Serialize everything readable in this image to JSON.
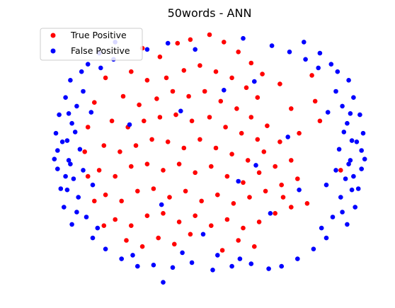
{
  "chart_data": {
    "type": "scatter",
    "title": "50words - ANN",
    "xlabel": "",
    "ylabel": "",
    "axes_visible": false,
    "grid": false,
    "xlim": [
      -10,
      10
    ],
    "ylim": [
      -10,
      10
    ],
    "legend_position": "top-left",
    "series": [
      {
        "name": "True Positive",
        "color": "#ff0000",
        "points": [
          [
            -4.2,
            8.5
          ],
          [
            -3.1,
            7.8
          ],
          [
            -2.0,
            8.9
          ],
          [
            -1.2,
            9.2
          ],
          [
            0.0,
            9.6
          ],
          [
            0.9,
            9.0
          ],
          [
            1.8,
            8.2
          ],
          [
            2.6,
            7.3
          ],
          [
            3.3,
            6.4
          ],
          [
            -4.9,
            6.6
          ],
          [
            -3.9,
            5.9
          ],
          [
            -2.7,
            6.1
          ],
          [
            -1.6,
            6.7
          ],
          [
            -0.6,
            7.1
          ],
          [
            0.4,
            6.6
          ],
          [
            1.4,
            6.1
          ],
          [
            2.3,
            5.3
          ],
          [
            3.0,
            4.5
          ],
          [
            -5.4,
            4.6
          ],
          [
            -4.4,
            3.9
          ],
          [
            -3.3,
            4.4
          ],
          [
            -2.3,
            5.0
          ],
          [
            -1.3,
            4.6
          ],
          [
            -0.3,
            5.0
          ],
          [
            0.7,
            4.2
          ],
          [
            1.7,
            3.6
          ],
          [
            2.6,
            2.9
          ],
          [
            3.6,
            2.2
          ],
          [
            -6.1,
            2.6
          ],
          [
            -5.1,
            2.1
          ],
          [
            -4.1,
            2.6
          ],
          [
            -3.1,
            2.9
          ],
          [
            -2.1,
            3.1
          ],
          [
            -1.1,
            2.6
          ],
          [
            0.0,
            2.9
          ],
          [
            1.0,
            2.1
          ],
          [
            2.0,
            1.6
          ],
          [
            3.0,
            1.1
          ],
          [
            -6.6,
            0.6
          ],
          [
            -5.6,
            0.1
          ],
          [
            -4.6,
            0.6
          ],
          [
            -3.6,
            1.1
          ],
          [
            -2.6,
            0.9
          ],
          [
            -1.6,
            0.4
          ],
          [
            -0.6,
            1.1
          ],
          [
            0.4,
            0.4
          ],
          [
            1.4,
            -0.1
          ],
          [
            2.4,
            -0.6
          ],
          [
            3.4,
            0.1
          ],
          [
            4.4,
            0.9
          ],
          [
            -6.9,
            -1.4
          ],
          [
            -5.9,
            -1.9
          ],
          [
            -4.9,
            -1.1
          ],
          [
            -3.9,
            -0.9
          ],
          [
            -2.9,
            -1.4
          ],
          [
            -1.9,
            -0.9
          ],
          [
            -0.9,
            -1.6
          ],
          [
            0.1,
            -1.1
          ],
          [
            1.1,
            -1.9
          ],
          [
            2.1,
            -2.4
          ],
          [
            3.1,
            -1.6
          ],
          [
            4.1,
            -1.1
          ],
          [
            5.1,
            -0.6
          ],
          [
            -6.5,
            -3.4
          ],
          [
            -5.5,
            -3.9
          ],
          [
            -4.5,
            -3.1
          ],
          [
            -3.5,
            -2.9
          ],
          [
            -2.5,
            -3.6
          ],
          [
            -1.5,
            -3.1
          ],
          [
            -0.5,
            -3.9
          ],
          [
            0.5,
            -3.4
          ],
          [
            1.5,
            -4.1
          ],
          [
            2.5,
            -3.6
          ],
          [
            3.5,
            -3.1
          ],
          [
            4.5,
            -2.6
          ],
          [
            5.5,
            -2.1
          ],
          [
            -5.9,
            -5.4
          ],
          [
            -4.9,
            -5.9
          ],
          [
            -3.9,
            -5.1
          ],
          [
            -2.9,
            -4.9
          ],
          [
            -1.9,
            -5.6
          ],
          [
            -0.9,
            -5.1
          ],
          [
            0.1,
            -5.9
          ],
          [
            1.1,
            -5.4
          ],
          [
            2.1,
            -6.1
          ],
          [
            3.1,
            -5.6
          ],
          [
            4.1,
            -4.9
          ],
          [
            5.1,
            -4.4
          ],
          [
            6.1,
            -4.1
          ],
          [
            -5.2,
            -7.1
          ],
          [
            -4.2,
            -7.6
          ],
          [
            -3.2,
            -6.9
          ],
          [
            -2.2,
            -7.4
          ],
          [
            -1.2,
            -6.6
          ],
          [
            0.8,
            -7.9
          ],
          [
            1.8,
            -7.1
          ],
          [
            2.8,
            -7.6
          ],
          [
            -6.6,
            -5.9
          ],
          [
            -7.2,
            -3.9
          ],
          [
            -7.6,
            -1.9
          ],
          [
            -7.8,
            0.1
          ],
          [
            -7.6,
            2.1
          ],
          [
            -7.2,
            4.1
          ],
          [
            -6.5,
            6.1
          ],
          [
            6.6,
            4.2
          ],
          [
            6.9,
            2.6
          ],
          [
            6.4,
            6.3
          ],
          [
            8.2,
            -1.4
          ],
          [
            4.4,
            5.6
          ],
          [
            5.1,
            3.6
          ],
          [
            5.6,
            1.6
          ],
          [
            4.6,
            -3.6
          ]
        ]
      },
      {
        "name": "False Positive",
        "color": "#0000ff",
        "points": [
          [
            -9.5,
            0.2
          ],
          [
            -9.6,
            1.6
          ],
          [
            -9.4,
            3.1
          ],
          [
            -9.5,
            -1.3
          ],
          [
            -9.3,
            -2.9
          ],
          [
            -9.0,
            4.5
          ],
          [
            -9.1,
            -4.4
          ],
          [
            -8.7,
            5.9
          ],
          [
            -8.6,
            -5.8
          ],
          [
            -8.9,
            1.0
          ],
          [
            -8.8,
            -0.6
          ],
          [
            -8.6,
            2.4
          ],
          [
            -8.5,
            -2.1
          ],
          [
            -8.3,
            3.8
          ],
          [
            -8.2,
            -3.6
          ],
          [
            -8.1,
            0.3
          ],
          [
            -7.9,
            -1.4
          ],
          [
            -8.4,
            1.7
          ],
          [
            -7.9,
            5.0
          ],
          [
            -7.7,
            -5.2
          ],
          [
            -8.8,
            3.2
          ],
          [
            -8.9,
            -3.0
          ],
          [
            -7.6,
            7.2
          ],
          [
            -6.9,
            8.1
          ],
          [
            -5.9,
            9.0
          ],
          [
            -7.3,
            -6.9
          ],
          [
            -6.5,
            -7.8
          ],
          [
            -5.5,
            -8.6
          ],
          [
            -4.5,
            -9.2
          ],
          [
            -8.0,
            6.6
          ],
          [
            -7.0,
            -6.1
          ],
          [
            -6.8,
            6.9
          ],
          [
            -6.0,
            7.6
          ],
          [
            -8.3,
            -4.8
          ],
          [
            -7.4,
            3.3
          ],
          [
            -7.3,
            -2.6
          ],
          [
            -9.7,
            -0.5
          ],
          [
            -9.2,
            0.9
          ],
          [
            -9.0,
            -1.9
          ],
          [
            -8.7,
            -0.9
          ],
          [
            9.5,
            0.2
          ],
          [
            9.6,
            1.6
          ],
          [
            9.4,
            3.1
          ],
          [
            9.5,
            -1.3
          ],
          [
            9.3,
            -2.9
          ],
          [
            9.0,
            4.5
          ],
          [
            9.1,
            -4.4
          ],
          [
            8.7,
            5.9
          ],
          [
            8.6,
            -5.8
          ],
          [
            8.9,
            1.0
          ],
          [
            8.8,
            -0.6
          ],
          [
            8.6,
            2.4
          ],
          [
            8.5,
            -2.1
          ],
          [
            8.3,
            3.8
          ],
          [
            8.2,
            -3.6
          ],
          [
            8.1,
            0.3
          ],
          [
            7.9,
            -1.4
          ],
          [
            8.4,
            1.7
          ],
          [
            7.9,
            5.0
          ],
          [
            7.7,
            -5.2
          ],
          [
            8.8,
            3.2
          ],
          [
            8.9,
            -3.0
          ],
          [
            7.6,
            7.2
          ],
          [
            6.9,
            8.1
          ],
          [
            5.9,
            9.0
          ],
          [
            7.3,
            -6.9
          ],
          [
            6.5,
            -7.8
          ],
          [
            5.5,
            -8.6
          ],
          [
            4.5,
            -9.2
          ],
          [
            8.0,
            6.6
          ],
          [
            7.0,
            -6.1
          ],
          [
            6.8,
            6.9
          ],
          [
            6.0,
            7.6
          ],
          [
            8.3,
            -4.8
          ],
          [
            7.4,
            3.3
          ],
          [
            7.3,
            -2.6
          ],
          [
            9.7,
            -0.5
          ],
          [
            9.2,
            0.9
          ],
          [
            9.0,
            -1.9
          ],
          [
            8.7,
            -0.9
          ],
          [
            -3.5,
            -9.1
          ],
          [
            -2.3,
            -9.3
          ],
          [
            -1.1,
            -8.9
          ],
          [
            0.2,
            -9.5
          ],
          [
            1.4,
            -9.2
          ],
          [
            2.6,
            -9.0
          ],
          [
            3.7,
            -9.4
          ],
          [
            -2.9,
            -10.5
          ],
          [
            0.5,
            -8.3
          ],
          [
            -1.7,
            -8.1
          ],
          [
            1.9,
            -8.6
          ],
          [
            -4.8,
            -8.3
          ],
          [
            -3.9,
            8.4
          ],
          [
            -2.6,
            8.9
          ],
          [
            -0.9,
            8.4
          ],
          [
            2.1,
            9.3
          ],
          [
            3.9,
            8.7
          ],
          [
            5.0,
            8.2
          ],
          [
            -1.8,
            3.4
          ],
          [
            0.9,
            5.1
          ],
          [
            1.8,
            -2.3
          ],
          [
            -0.4,
            -6.6
          ],
          [
            2.8,
            5.8
          ],
          [
            3.8,
            -4.9
          ],
          [
            -3.0,
            -4.2
          ],
          [
            5.6,
            -3.0
          ],
          [
            -5.0,
            2.3
          ],
          [
            2.9,
            -1.0
          ],
          [
            4.9,
            1.3
          ]
        ]
      }
    ]
  }
}
